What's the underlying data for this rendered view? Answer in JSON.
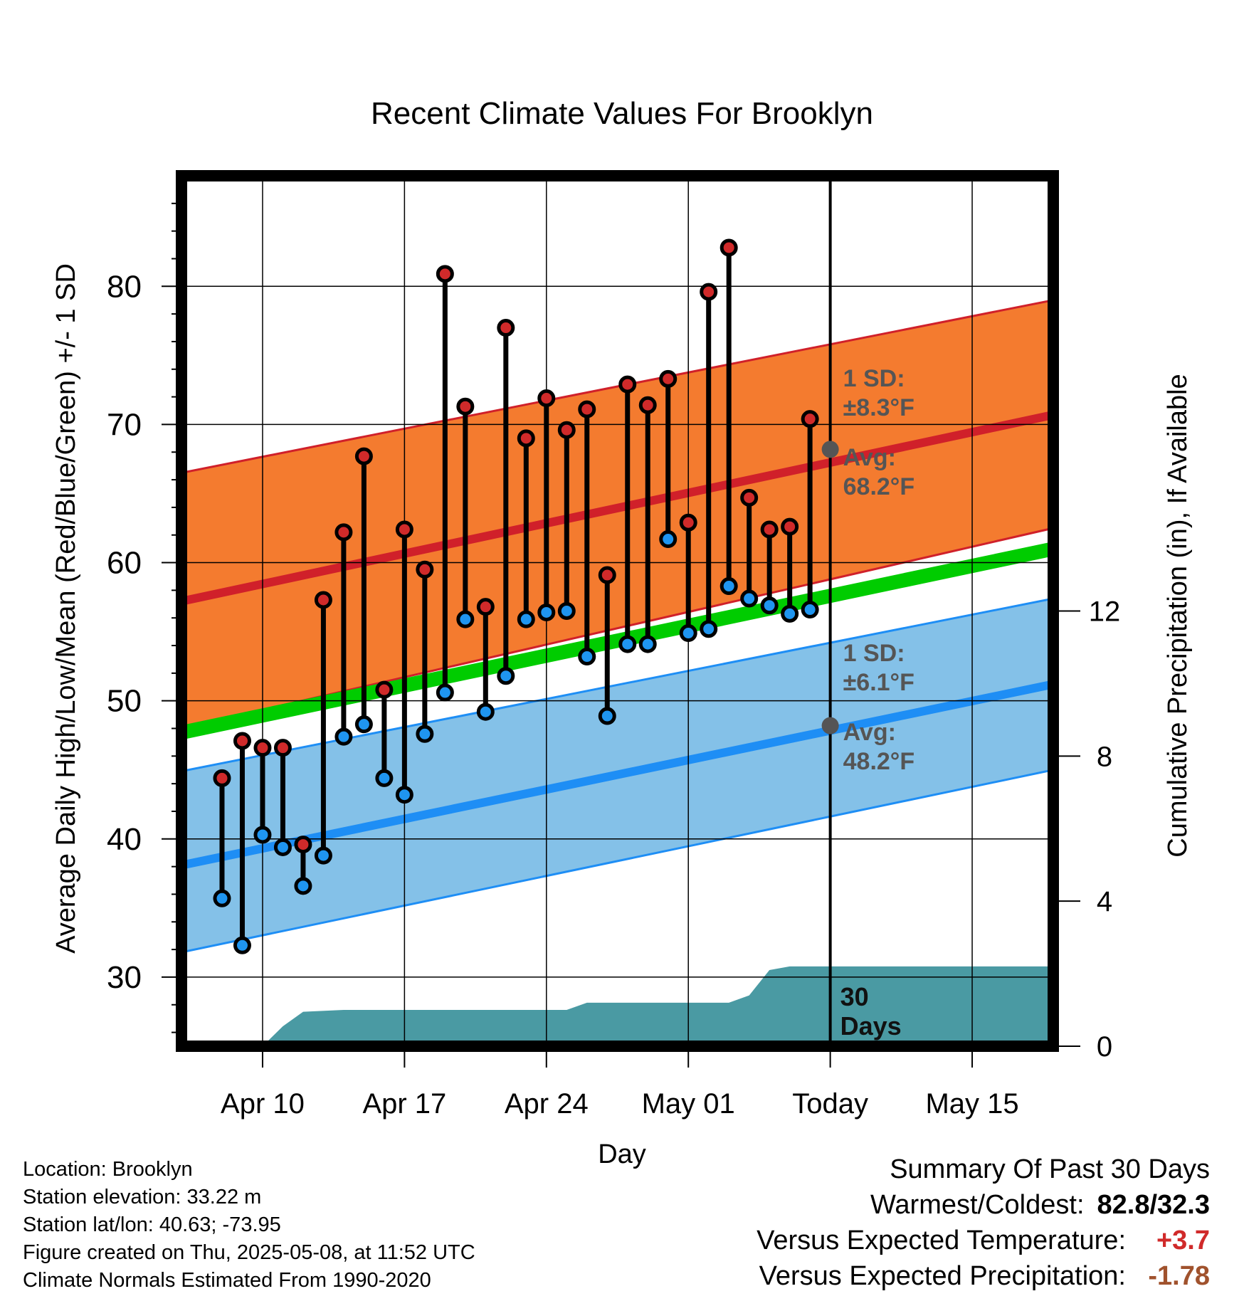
{
  "chart_data": {
    "type": "line",
    "title": "Recent Climate Values For Brooklyn",
    "xlabel": "Day",
    "ylabel": "Average Daily High/Low/Mean (Red/Blue/Green) +/- 1 SD",
    "y2label": "Cumulative Precipitation (in), If Available",
    "ylim": [
      25,
      88
    ],
    "y2lim": [
      0,
      24
    ],
    "xlim": [
      "2025-04-06",
      "2025-05-19"
    ],
    "grid": true,
    "x_ticks": [
      "Apr 10",
      "Apr 17",
      "Apr 24",
      "May 01",
      "Today",
      "May 15"
    ],
    "x_tick_dates": [
      "2025-04-10",
      "2025-04-17",
      "2025-04-24",
      "2025-05-01",
      "2025-05-08",
      "2025-05-15"
    ],
    "y_ticks": [
      "30",
      "40",
      "50",
      "60",
      "70",
      "80"
    ],
    "y_tick_values": [
      30,
      40,
      50,
      60,
      70,
      80
    ],
    "y2_ticks": [
      "0",
      "4",
      "8",
      "12"
    ],
    "y2_tick_values": [
      0,
      4,
      8,
      12
    ],
    "today_date": "2025-05-08",
    "observed": {
      "dates": [
        "2025-04-08",
        "2025-04-09",
        "2025-04-10",
        "2025-04-11",
        "2025-04-12",
        "2025-04-13",
        "2025-04-14",
        "2025-04-15",
        "2025-04-16",
        "2025-04-17",
        "2025-04-18",
        "2025-04-19",
        "2025-04-20",
        "2025-04-21",
        "2025-04-22",
        "2025-04-23",
        "2025-04-24",
        "2025-04-25",
        "2025-04-26",
        "2025-04-27",
        "2025-04-28",
        "2025-04-29",
        "2025-04-30",
        "2025-05-01",
        "2025-05-02",
        "2025-05-03",
        "2025-05-04",
        "2025-05-05",
        "2025-05-06",
        "2025-05-07"
      ],
      "highs": [
        44.4,
        47.1,
        46.6,
        46.6,
        39.6,
        57.3,
        62.2,
        67.7,
        50.8,
        62.4,
        59.5,
        80.9,
        71.3,
        56.8,
        77.0,
        69.0,
        71.9,
        69.6,
        71.1,
        59.1,
        72.9,
        71.4,
        73.3,
        62.9,
        79.6,
        82.8,
        64.7,
        62.4,
        62.6,
        70.4
      ],
      "lows": [
        35.7,
        32.3,
        40.3,
        39.4,
        36.6,
        38.8,
        47.4,
        48.3,
        44.4,
        43.2,
        47.6,
        50.6,
        55.9,
        49.2,
        51.8,
        55.9,
        56.4,
        56.5,
        53.2,
        48.9,
        54.1,
        54.1,
        61.7,
        54.9,
        55.2,
        58.3,
        57.4,
        56.9,
        56.3,
        56.6
      ]
    },
    "normals": {
      "dates": [
        "2025-04-06",
        "2025-05-19"
      ],
      "high_mean": [
        57.2,
        70.7
      ],
      "high_sd_upper": [
        66.5,
        79.0
      ],
      "high_sd_lower": [
        48.0,
        62.5
      ],
      "low_mean": [
        38.1,
        51.2
      ],
      "low_sd_upper": [
        44.9,
        57.4
      ],
      "low_sd_lower": [
        31.8,
        45.0
      ],
      "mean_mean": [
        47.7,
        61.0
      ]
    },
    "cumulative_precipitation": {
      "dates": [
        "2025-04-07",
        "2025-04-10",
        "2025-04-11",
        "2025-04-12",
        "2025-04-14",
        "2025-04-25",
        "2025-04-26",
        "2025-05-03",
        "2025-05-04",
        "2025-05-05",
        "2025-05-06",
        "2025-05-19"
      ],
      "values": [
        0.0,
        0.0,
        0.55,
        0.95,
        1.0,
        1.0,
        1.2,
        1.2,
        1.4,
        2.1,
        2.2,
        2.2
      ]
    },
    "annotations": {
      "high_sd_label": "1 SD:",
      "high_sd_value": "±8.3°F",
      "high_avg_label": "Avg:",
      "high_avg_value": "68.2°F",
      "low_sd_label": "1 SD:",
      "low_sd_value": "±6.1°F",
      "low_avg_label": "Avg:",
      "low_avg_value": "48.2°F",
      "window_line1": "30",
      "window_line2": "Days"
    },
    "today_markers": {
      "high_avg": 68.2,
      "low_avg": 48.2
    },
    "colors": {
      "high_band": "#f47b2f",
      "high_line": "#d0202a",
      "low_band": "#84c1e8",
      "low_line": "#1e8ef5",
      "mean_line": "#00cc00",
      "precip": "#4a9aa3",
      "high_dot": "#d02a2a",
      "low_dot": "#1f95f0",
      "annotation_text": "#555555"
    }
  },
  "info": {
    "location": "Location: Brooklyn",
    "elevation": "Station elevation: 33.22 m",
    "latlon": "Station lat/lon: 40.63; -73.95",
    "created": "Figure created on Thu, 2025-05-08, at 11:52 UTC",
    "normals": "Climate Normals Estimated From 1990-2020"
  },
  "summary": {
    "title": "Summary Of Past 30 Days",
    "warm_cold_label": "Warmest/Coldest:",
    "warm_cold_value": "82.8/32.3",
    "temp_label": "Versus Expected Temperature:",
    "temp_value": "+3.7",
    "temp_color": "#d02a2a",
    "precip_label": "Versus Expected Precipitation:",
    "precip_value": "-1.78",
    "precip_color": "#a0522d"
  }
}
